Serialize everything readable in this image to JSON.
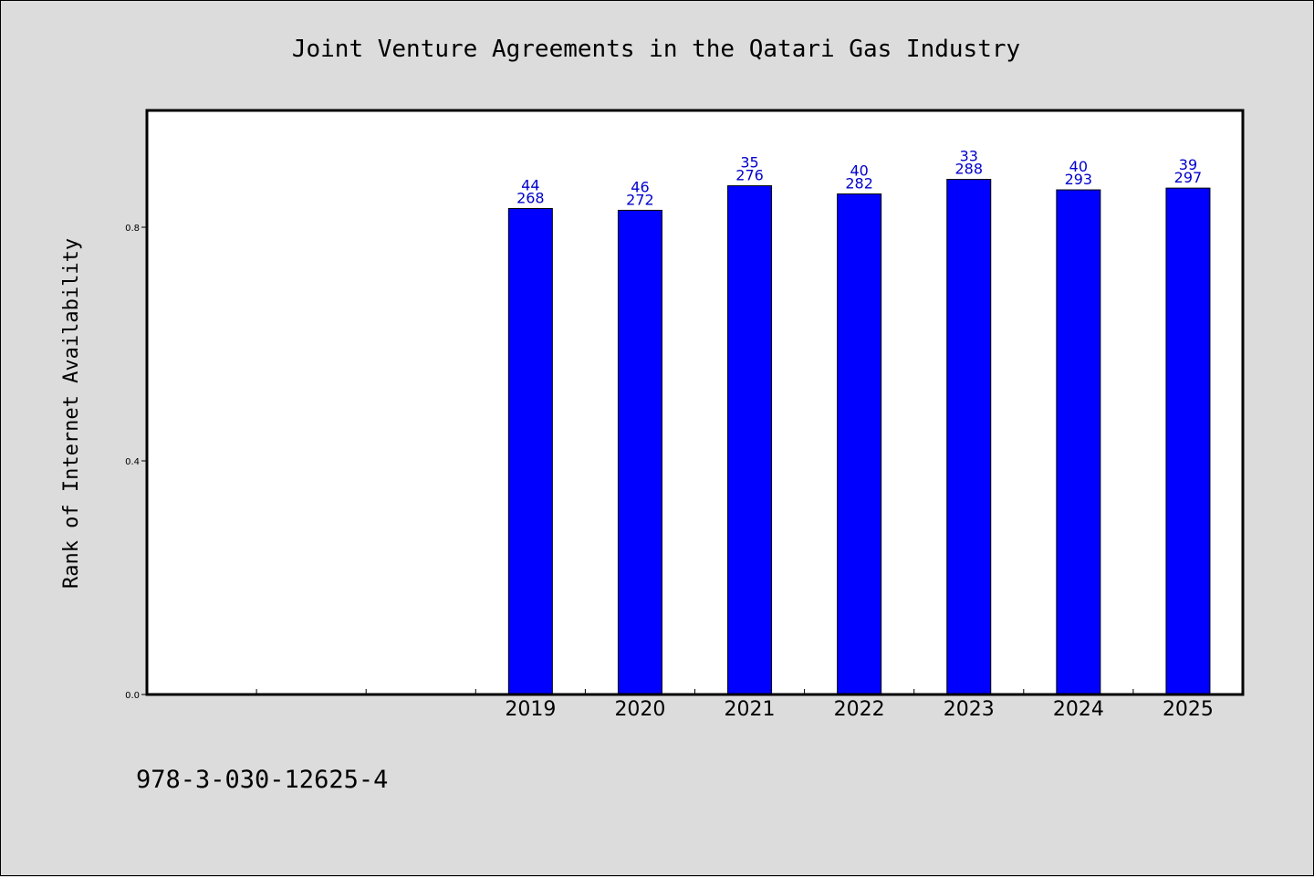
{
  "footer": {
    "isbn": "978-3-030-12625-4"
  },
  "colors": {
    "bar": "#0000ff",
    "label": "#0000cc",
    "background": "#dcdcdc",
    "plot_bg": "#ffffff"
  },
  "chart_data": {
    "type": "bar",
    "title": "Joint Venture Agreements in the Qatari Gas Industry",
    "xlabel": "",
    "ylabel": "Rank of Internet Availability",
    "ylim": [
      0,
      1.0
    ],
    "yticks": [
      "0.0",
      "0.4",
      "0.8"
    ],
    "ytick_values": [
      0.0,
      0.4,
      0.8
    ],
    "categories": [
      "2019",
      "2020",
      "2021",
      "2022",
      "2023",
      "2024",
      "2025"
    ],
    "values": [
      0.832,
      0.829,
      0.871,
      0.857,
      0.882,
      0.864,
      0.867
    ],
    "labels_top": [
      "44",
      "46",
      "35",
      "40",
      "33",
      "40",
      "39"
    ],
    "labels_bottom": [
      "268",
      "272",
      "276",
      "282",
      "288",
      "293",
      "297"
    ],
    "x_slots": 10,
    "first_category_slot": 3,
    "grid": false,
    "legend": "none"
  }
}
